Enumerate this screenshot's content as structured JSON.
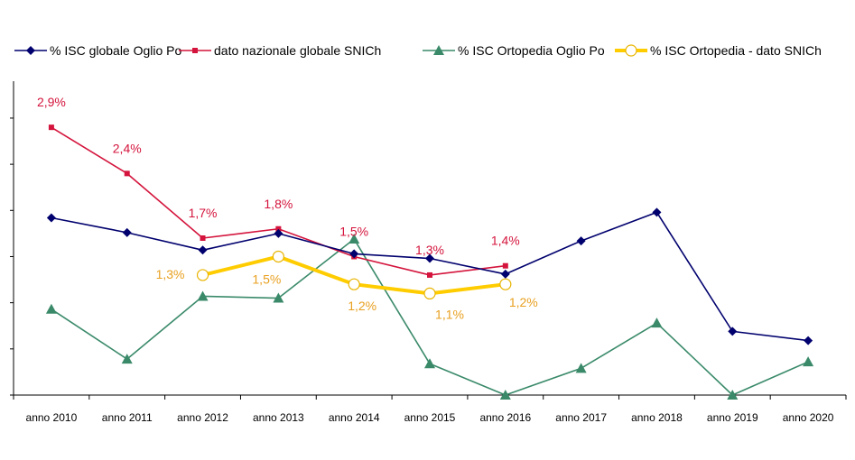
{
  "chart_data": {
    "type": "line",
    "title": "",
    "xlabel": "",
    "ylabel": "",
    "categories": [
      "anno 2010",
      "anno 2011",
      "anno 2012",
      "anno 2013",
      "anno 2014",
      "anno 2015",
      "anno 2016",
      "anno 2017",
      "anno 2018",
      "anno 2019",
      "anno 2020"
    ],
    "ylim": [
      0,
      3.4
    ],
    "y_ticks": [
      0,
      0.5,
      1.0,
      1.5,
      2.0,
      2.5,
      3.0
    ],
    "y_tick_labels_shown": false,
    "grid": false,
    "legend_position": "top",
    "series": [
      {
        "name": "% ISC globale Oglio Po",
        "color": "#00006e",
        "marker": "diamond",
        "values": [
          1.92,
          1.76,
          1.57,
          1.75,
          1.53,
          1.48,
          1.31,
          1.67,
          1.98,
          0.69,
          0.59
        ],
        "data_labels": [
          null,
          null,
          null,
          null,
          null,
          null,
          null,
          null,
          null,
          null,
          null
        ]
      },
      {
        "name": "dato nazionale globale SNICh",
        "color": "#d4143c",
        "marker": "square",
        "values": [
          2.9,
          2.4,
          1.7,
          1.8,
          1.5,
          1.3,
          1.4,
          null,
          null,
          null,
          null
        ],
        "data_labels": [
          "2,9%",
          "2,4%",
          "1,7%",
          "1,8%",
          "1,5%",
          "1,3%",
          "1,4%",
          null,
          null,
          null,
          null
        ]
      },
      {
        "name": "% ISC Ortopedia Oglio Po",
        "color": "#3a8a6a",
        "marker": "triangle",
        "values": [
          0.93,
          0.39,
          1.07,
          1.05,
          1.69,
          0.34,
          0.0,
          0.29,
          0.78,
          0.0,
          0.36
        ],
        "data_labels": [
          null,
          null,
          null,
          null,
          null,
          null,
          null,
          null,
          null,
          null,
          null
        ]
      },
      {
        "name": "% ISC Ortopedia - dato SNICh",
        "color": "#ffcc00",
        "marker": "open-circle",
        "values": [
          null,
          null,
          1.3,
          1.5,
          1.2,
          1.1,
          1.2,
          null,
          null,
          null,
          null
        ],
        "data_labels": [
          null,
          null,
          "1,3%",
          "1,5%",
          "1,2%",
          "1,1%",
          "1,2%",
          null,
          null,
          null,
          null
        ],
        "label_color": "#e8a020"
      }
    ]
  }
}
